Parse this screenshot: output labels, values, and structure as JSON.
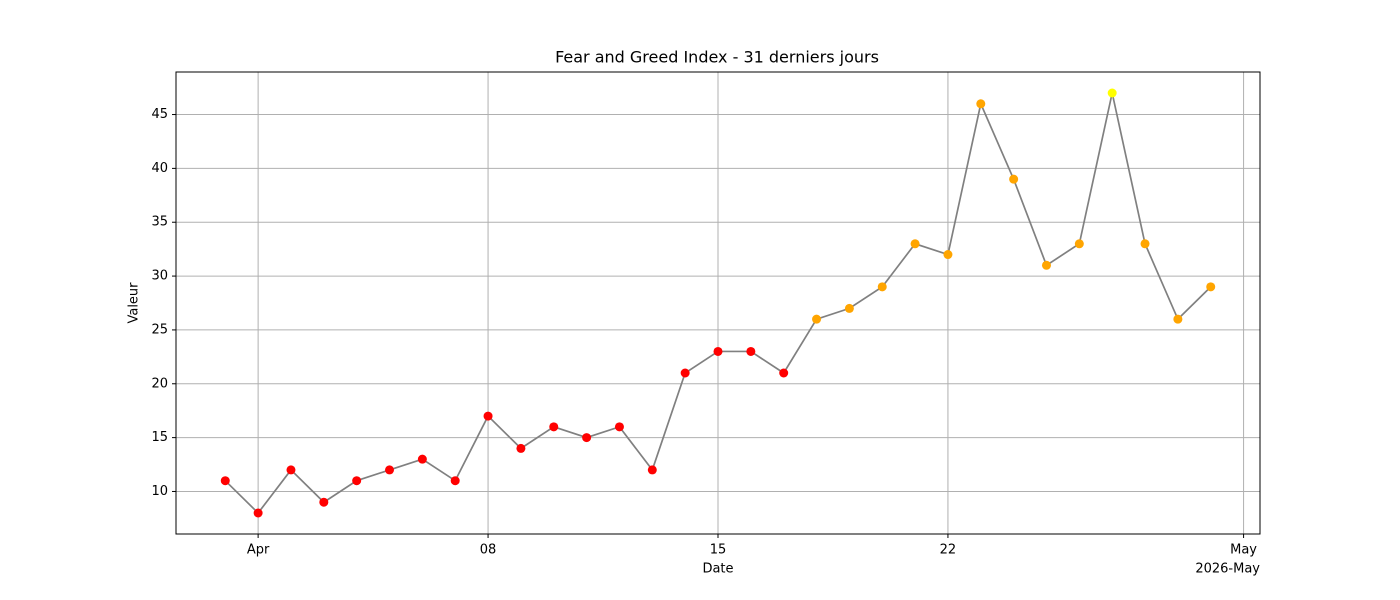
{
  "chart_data": {
    "type": "line",
    "title": "Fear and Greed Index - 31 derniers jours",
    "x_label": "Date",
    "y_label": "Valeur",
    "x_offset_label": "2026-May",
    "x": [
      "2026-03-31",
      "2026-04-01",
      "2026-04-02",
      "2026-04-03",
      "2026-04-04",
      "2026-04-05",
      "2026-04-06",
      "2026-04-07",
      "2026-04-08",
      "2026-04-09",
      "2026-04-10",
      "2026-04-11",
      "2026-04-12",
      "2026-04-13",
      "2026-04-14",
      "2026-04-15",
      "2026-04-16",
      "2026-04-17",
      "2026-04-18",
      "2026-04-19",
      "2026-04-20",
      "2026-04-21",
      "2026-04-22",
      "2026-04-23",
      "2026-04-24",
      "2026-04-25",
      "2026-04-26",
      "2026-04-27",
      "2026-04-28",
      "2026-04-29",
      "2026-04-30"
    ],
    "series": [
      {
        "color": "#808080",
        "values": [
          11,
          8,
          12,
          9,
          11,
          12,
          13,
          11,
          17,
          14,
          16,
          15,
          16,
          12,
          21,
          23,
          23,
          21,
          26,
          27,
          29,
          33,
          32,
          46,
          39,
          31,
          33,
          47,
          33,
          26,
          29
        ],
        "point_colors": [
          "#ff0000",
          "#ff0000",
          "#ff0000",
          "#ff0000",
          "#ff0000",
          "#ff0000",
          "#ff0000",
          "#ff0000",
          "#ff0000",
          "#ff0000",
          "#ff0000",
          "#ff0000",
          "#ff0000",
          "#ff0000",
          "#ff0000",
          "#ff0000",
          "#ff0000",
          "#ff0000",
          "#ffa500",
          "#ffa500",
          "#ffa500",
          "#ffa500",
          "#ffa500",
          "#ffa500",
          "#ffa500",
          "#ffa500",
          "#ffa500",
          "#ffff00",
          "#ffa500",
          "#ffa500",
          "#ffa500"
        ]
      }
    ],
    "xlim": [
      "2026-03-29T12:00:00",
      "2026-05-01T12:00:00"
    ],
    "xticks": [
      {
        "value": "2026-04-01",
        "label": "Apr"
      },
      {
        "value": "2026-04-08",
        "label": "08"
      },
      {
        "value": "2026-04-15",
        "label": "15"
      },
      {
        "value": "2026-04-22",
        "label": "22"
      },
      {
        "value": "2026-05-01",
        "label": "May"
      }
    ],
    "ylim": [
      6.05,
      48.95
    ],
    "yticks": [
      10,
      15,
      20,
      25,
      30,
      35,
      40,
      45
    ],
    "grid": true
  }
}
